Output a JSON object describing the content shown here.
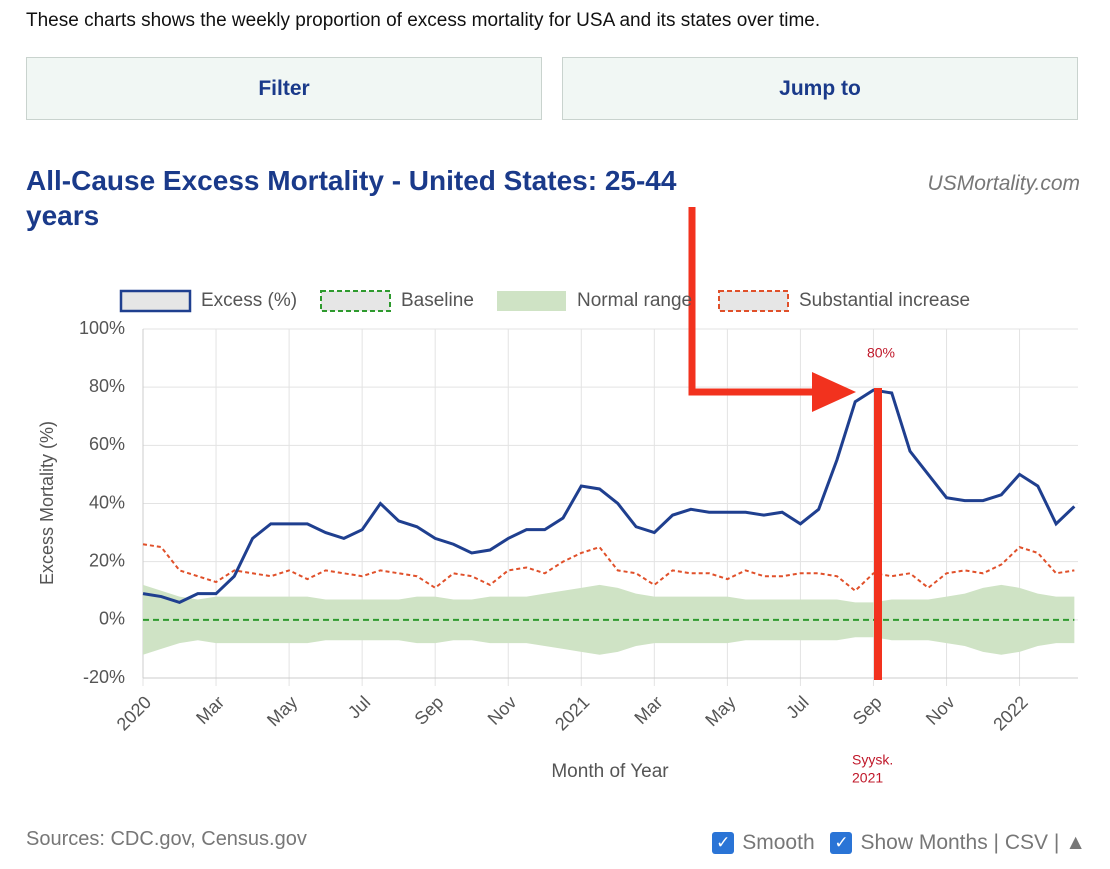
{
  "page": {
    "intro": "These charts shows the weekly proportion of excess mortality for USA and its states over time.",
    "buttons": [
      "Filter",
      "Jump to"
    ],
    "site": "USMortality.com",
    "footer": {
      "sources": "Sources: CDC.gov, Census.gov",
      "smooth": "Smooth",
      "show_months": "Show Months",
      "separator": "|",
      "csv": "CSV",
      "top": "▲"
    }
  },
  "chart_data": {
    "type": "line",
    "title": "All-Cause Excess Mortality - United States: 25-44 years",
    "x_label": "Month of Year",
    "y_label": "Excess Mortality (%)",
    "x": [
      0,
      0.5,
      1,
      1.5,
      2,
      2.5,
      3,
      3.5,
      4,
      4.5,
      5,
      5.5,
      6,
      6.5,
      7,
      7.5,
      8,
      8.5,
      9,
      9.5,
      10,
      10.5,
      11,
      11.5,
      12,
      12.5,
      13,
      13.5,
      14,
      14.5,
      15,
      15.5,
      16,
      16.5,
      17,
      17.5,
      18,
      18.5,
      19,
      19.5,
      20,
      20.5,
      21,
      21.5,
      22,
      22.5,
      23,
      23.5,
      24,
      24.5,
      25,
      25.5
    ],
    "xlim": [
      0,
      25.6
    ],
    "xticks": [
      {
        "value": 0,
        "label": "2020"
      },
      {
        "value": 2,
        "label": "Mar"
      },
      {
        "value": 4,
        "label": "May"
      },
      {
        "value": 6,
        "label": "Jul"
      },
      {
        "value": 8,
        "label": "Sep"
      },
      {
        "value": 10,
        "label": "Nov"
      },
      {
        "value": 12,
        "label": "2021"
      },
      {
        "value": 14,
        "label": "Mar"
      },
      {
        "value": 16,
        "label": "May"
      },
      {
        "value": 18,
        "label": "Jul"
      },
      {
        "value": 20,
        "label": "Sep"
      },
      {
        "value": 22,
        "label": "Nov"
      },
      {
        "value": 24,
        "label": "2022"
      }
    ],
    "ylim": [
      -20,
      100
    ],
    "yticks": [
      {
        "value": -20,
        "label": "-20%"
      },
      {
        "value": 0,
        "label": "0%"
      },
      {
        "value": 20,
        "label": "20%"
      },
      {
        "value": 40,
        "label": "40%"
      },
      {
        "value": 60,
        "label": "60%"
      },
      {
        "value": 80,
        "label": "80%"
      },
      {
        "value": 100,
        "label": "100%"
      }
    ],
    "grid": true,
    "series": [
      {
        "name": "Excess (%)",
        "color": "#1f3f8f",
        "style": "solid",
        "values": [
          9,
          8,
          6,
          9,
          9,
          15,
          28,
          33,
          33,
          33,
          30,
          28,
          31,
          40,
          34,
          32,
          28,
          26,
          23,
          24,
          28,
          31,
          31,
          35,
          46,
          45,
          40,
          32,
          30,
          36,
          38,
          37,
          37,
          37,
          36,
          37,
          33,
          38,
          55,
          75,
          79,
          78,
          58,
          50,
          42,
          41,
          41,
          43,
          50,
          46,
          33,
          39
        ]
      },
      {
        "name": "Baseline",
        "color": "#2e9a2e",
        "style": "dashed",
        "values": [
          0,
          0,
          0,
          0,
          0,
          0,
          0,
          0,
          0,
          0,
          0,
          0,
          0,
          0,
          0,
          0,
          0,
          0,
          0,
          0,
          0,
          0,
          0,
          0,
          0,
          0,
          0,
          0,
          0,
          0,
          0,
          0,
          0,
          0,
          0,
          0,
          0,
          0,
          0,
          0,
          0,
          0,
          0,
          0,
          0,
          0,
          0,
          0,
          0,
          0,
          0,
          0
        ]
      },
      {
        "name": "Normal range",
        "color": "#cfe3c5",
        "style": "band",
        "values": [
          12,
          10,
          8,
          7,
          8,
          8,
          8,
          8,
          8,
          8,
          7,
          7,
          7,
          7,
          7,
          8,
          8,
          7,
          7,
          8,
          8,
          8,
          9,
          10,
          11,
          12,
          11,
          9,
          8,
          8,
          8,
          8,
          8,
          7,
          7,
          7,
          7,
          7,
          7,
          6,
          6,
          7,
          7,
          7,
          8,
          9,
          11,
          12,
          11,
          9,
          8,
          8
        ],
        "lower": [
          -12,
          -10,
          -8,
          -7,
          -8,
          -8,
          -8,
          -8,
          -8,
          -8,
          -7,
          -7,
          -7,
          -7,
          -7,
          -8,
          -8,
          -7,
          -7,
          -8,
          -8,
          -8,
          -9,
          -10,
          -11,
          -12,
          -11,
          -9,
          -8,
          -8,
          -8,
          -8,
          -8,
          -7,
          -7,
          -7,
          -7,
          -7,
          -7,
          -6,
          -6,
          -7,
          -7,
          -7,
          -8,
          -9,
          -11,
          -12,
          -11,
          -9,
          -8,
          -8
        ]
      },
      {
        "name": "Substantial increase",
        "color": "#e0502a",
        "style": "dotted",
        "values": [
          26,
          25,
          17,
          15,
          13,
          17,
          16,
          15,
          17,
          14,
          17,
          16,
          15,
          17,
          16,
          15,
          11,
          16,
          15,
          12,
          17,
          18,
          16,
          20,
          23,
          25,
          17,
          16,
          12,
          17,
          16,
          16,
          14,
          17,
          15,
          15,
          16,
          16,
          15,
          10,
          16,
          15,
          16,
          11,
          16,
          17,
          16,
          19,
          25,
          23,
          16,
          17
        ]
      }
    ],
    "annotations": [
      "80%",
      "Syysk.",
      "2021"
    ]
  }
}
